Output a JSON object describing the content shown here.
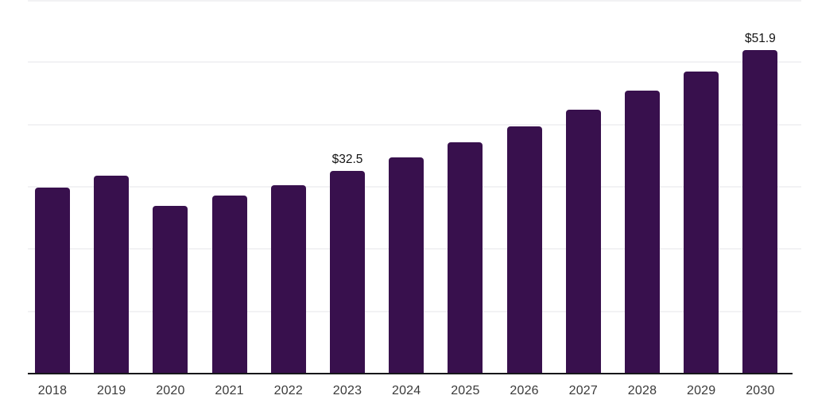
{
  "chart_data": {
    "type": "bar",
    "title": "",
    "xlabel": "",
    "ylabel": "",
    "categories": [
      "2018",
      "2019",
      "2020",
      "2021",
      "2022",
      "2023",
      "2024",
      "2025",
      "2026",
      "2027",
      "2028",
      "2029",
      "2030"
    ],
    "values": [
      29.9,
      31.8,
      27.0,
      28.6,
      30.2,
      32.5,
      34.7,
      37.1,
      39.7,
      42.4,
      45.4,
      48.5,
      51.9
    ],
    "data_labels": [
      {
        "category": "2023",
        "text": "$32.5"
      },
      {
        "category": "2030",
        "text": "$51.9"
      }
    ],
    "ylim": [
      0,
      60
    ],
    "grid_step": 10,
    "grid": "horizontal-only",
    "legend": "none",
    "y_tick_labels_visible": false,
    "colors": {
      "bar": "#38104D",
      "gridline": "#f2f2f4",
      "axis_line": "#17171b",
      "tick_label": "#3a3a3a",
      "value_label": "#131313"
    }
  }
}
